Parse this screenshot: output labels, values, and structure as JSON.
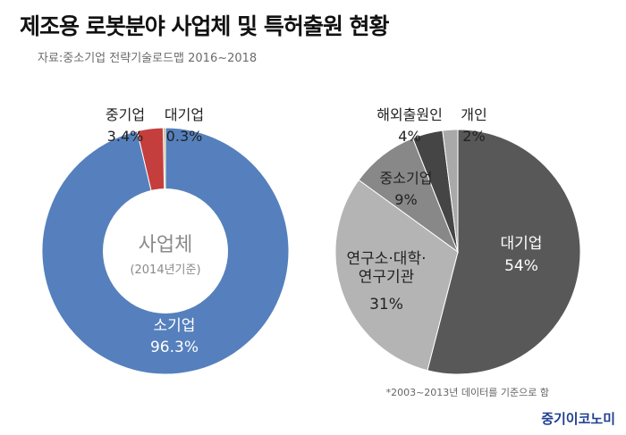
{
  "title": "제조용 로봇분야 사업체 및 특허출원 현황",
  "source": "자료:중소기업 전략기술로드맵 2016~2018",
  "note": "*2003~2013년 데이터를 기준으로 함",
  "logo": "중기이코노미",
  "chart_data": [
    {
      "type": "pie",
      "variant": "donut",
      "center_label": "사업체",
      "center_sublabel": "(2014년기준)",
      "start": "12 o'clock",
      "direction": "counterclockwise",
      "slices": [
        {
          "label": "대기업",
          "value": 0.3,
          "value_label": "0.3%",
          "color": "#c5b77a"
        },
        {
          "label": "중기업",
          "value": 3.4,
          "value_label": "3.4%",
          "color": "#c33e3d"
        },
        {
          "label": "소기업",
          "value": 96.3,
          "value_label": "96.3%",
          "color": "#5580bd"
        }
      ]
    },
    {
      "type": "pie",
      "start": "12 o'clock",
      "direction": "clockwise",
      "slices": [
        {
          "label": "대기업",
          "value": 54,
          "value_label": "54%",
          "color": "#585858"
        },
        {
          "label": "연구소·대학·\n연구기관",
          "value": 31,
          "value_label": "31%",
          "color": "#b4b4b4"
        },
        {
          "label": "중소기업",
          "value": 9,
          "value_label": "9%",
          "color": "#888888"
        },
        {
          "label": "해외출원인",
          "value": 4,
          "value_label": "4%",
          "color": "#454545"
        },
        {
          "label": "개인",
          "value": 2,
          "value_label": "2%",
          "color": "#a9a9a9"
        }
      ]
    }
  ]
}
